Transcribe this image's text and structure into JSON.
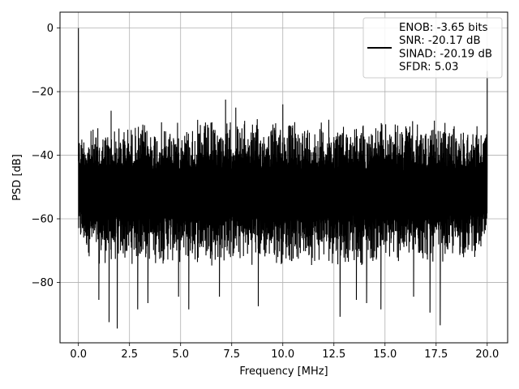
{
  "chart_data": {
    "type": "line",
    "title": "",
    "xlabel": "Frequency [MHz]",
    "ylabel": "PSD [dB]",
    "xlim": [
      -0.9,
      21.0
    ],
    "ylim": [
      -99,
      5
    ],
    "xticks": [
      0.0,
      2.5,
      5.0,
      7.5,
      10.0,
      12.5,
      15.0,
      17.5,
      20.0
    ],
    "xtick_labels": [
      "0.0",
      "2.5",
      "5.0",
      "7.5",
      "10.0",
      "12.5",
      "15.0",
      "17.5",
      "20.0"
    ],
    "yticks": [
      0,
      -20,
      -40,
      -60,
      -80
    ],
    "ytick_labels": [
      "0",
      "−20",
      "−40",
      "−60",
      "−80"
    ],
    "grid": true,
    "legend_position": "top-right",
    "series": [
      {
        "name": "ENOB: -3.65 bits\nSNR: -20.17 dB\nSINAD: -20.19 dB\nSFDR: 5.03",
        "color": "#000000",
        "x_range": [
          0,
          20
        ],
        "noise_band": {
          "upper_envelope": [
            [
              0,
              -31
            ],
            [
              1.5,
              -30
            ],
            [
              2.5,
              -29
            ],
            [
              5,
              -28.5
            ],
            [
              7.5,
              -28
            ],
            [
              10,
              -28
            ],
            [
              12.5,
              -28
            ],
            [
              15,
              -28.5
            ],
            [
              17.5,
              -29
            ],
            [
              20,
              -30
            ]
          ],
          "lower_envelope": [
            [
              0,
              -70
            ],
            [
              1,
              -75
            ],
            [
              2.5,
              -75
            ],
            [
              5,
              -75
            ],
            [
              10,
              -75
            ],
            [
              15,
              -75
            ],
            [
              17.5,
              -75
            ],
            [
              20,
              -72
            ]
          ]
        },
        "peaks": [
          {
            "x": 0.0,
            "y": 0
          },
          {
            "x": 20.0,
            "y": -13.5
          },
          {
            "x": 7.2,
            "y": -22.5
          },
          {
            "x": 10.0,
            "y": -24
          },
          {
            "x": 7.7,
            "y": -25
          },
          {
            "x": 1.6,
            "y": -26
          }
        ],
        "dips": [
          {
            "x": 1.9,
            "y": -94.5
          },
          {
            "x": 17.7,
            "y": -93.5
          },
          {
            "x": 1.5,
            "y": -92.5
          },
          {
            "x": 12.8,
            "y": -90.8
          },
          {
            "x": 17.2,
            "y": -89.5
          },
          {
            "x": 5.4,
            "y": -88.5
          },
          {
            "x": 2.9,
            "y": -88.5
          },
          {
            "x": 14.8,
            "y": -88.5
          },
          {
            "x": 8.8,
            "y": -87.5
          },
          {
            "x": 3.4,
            "y": -86.5
          },
          {
            "x": 14.1,
            "y": -86.5
          },
          {
            "x": 1.0,
            "y": -85.5
          },
          {
            "x": 13.6,
            "y": -85.5
          },
          {
            "x": 6.9,
            "y": -84.5
          },
          {
            "x": 4.9,
            "y": -84.5
          },
          {
            "x": 16.4,
            "y": -84.5
          }
        ]
      }
    ]
  }
}
